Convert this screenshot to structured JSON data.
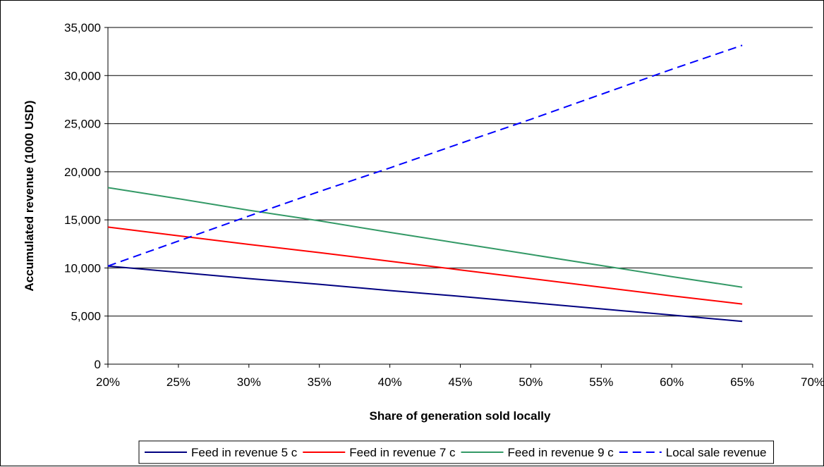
{
  "chart_data": {
    "type": "line",
    "xlabel": "Share of generation sold locally",
    "ylabel": "Accumulated revenue (1000 USD)",
    "x_ticks": [
      "20%",
      "25%",
      "30%",
      "35%",
      "40%",
      "45%",
      "50%",
      "55%",
      "60%",
      "65%",
      "70%"
    ],
    "y_ticks": [
      "0",
      "5,000",
      "10,000",
      "15,000",
      "20,000",
      "25,000",
      "30,000",
      "35,000"
    ],
    "xlim": [
      20,
      70
    ],
    "ylim": [
      0,
      35000
    ],
    "x": [
      20,
      25,
      30,
      35,
      40,
      45,
      50,
      55,
      60,
      65
    ],
    "grid": "horizontal",
    "legend_position": "bottom",
    "series": [
      {
        "name": "Feed in revenue 5 c",
        "color": "#000080",
        "dash": "solid",
        "values": [
          10200,
          9550,
          8900,
          8300,
          7650,
          7050,
          6400,
          5750,
          5100,
          4450
        ]
      },
      {
        "name": "Feed in revenue 7 c",
        "color": "#ff0000",
        "dash": "solid",
        "values": [
          14250,
          13350,
          12450,
          11600,
          10700,
          9800,
          8900,
          8000,
          7100,
          6250
        ]
      },
      {
        "name": "Feed in revenue 9 c",
        "color": "#339966",
        "dash": "solid",
        "values": [
          18350,
          17200,
          16000,
          14900,
          13700,
          12550,
          11400,
          10250,
          9100,
          8000
        ]
      },
      {
        "name": "Local sale revenue",
        "color": "#0000ff",
        "dash": "dashed",
        "values": [
          10200,
          12800,
          15400,
          17950,
          20400,
          22950,
          25450,
          28050,
          30650,
          33150
        ]
      }
    ]
  }
}
